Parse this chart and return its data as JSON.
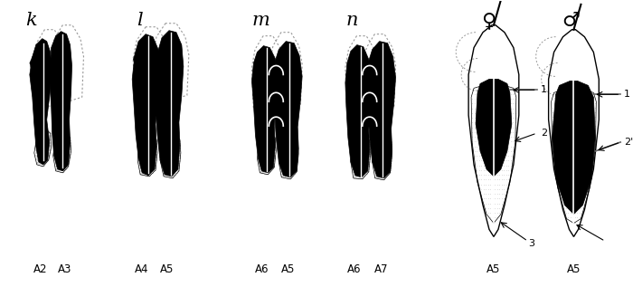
{
  "bg_color": "#ffffff",
  "labels_top": [
    "k",
    "l",
    "m",
    "n",
    "♀",
    "♂"
  ],
  "labels_bottom_pairs": [
    [
      "A2",
      "A3"
    ],
    [
      "A4",
      "A5"
    ],
    [
      "A6",
      "A5"
    ],
    [
      "A6",
      "A7"
    ],
    [
      "A5"
    ],
    [
      "A5"
    ]
  ],
  "annotations_female": {
    "1": [
      0.695,
      0.545
    ],
    "2": [
      0.695,
      0.42
    ],
    "3": [
      0.672,
      0.24
    ]
  },
  "annotations_male": {
    "1": [
      0.875,
      0.545
    ],
    "2'": [
      0.875,
      0.4
    ]
  },
  "dotted_color": "#888888",
  "stipple_color": "#bbbbbb"
}
